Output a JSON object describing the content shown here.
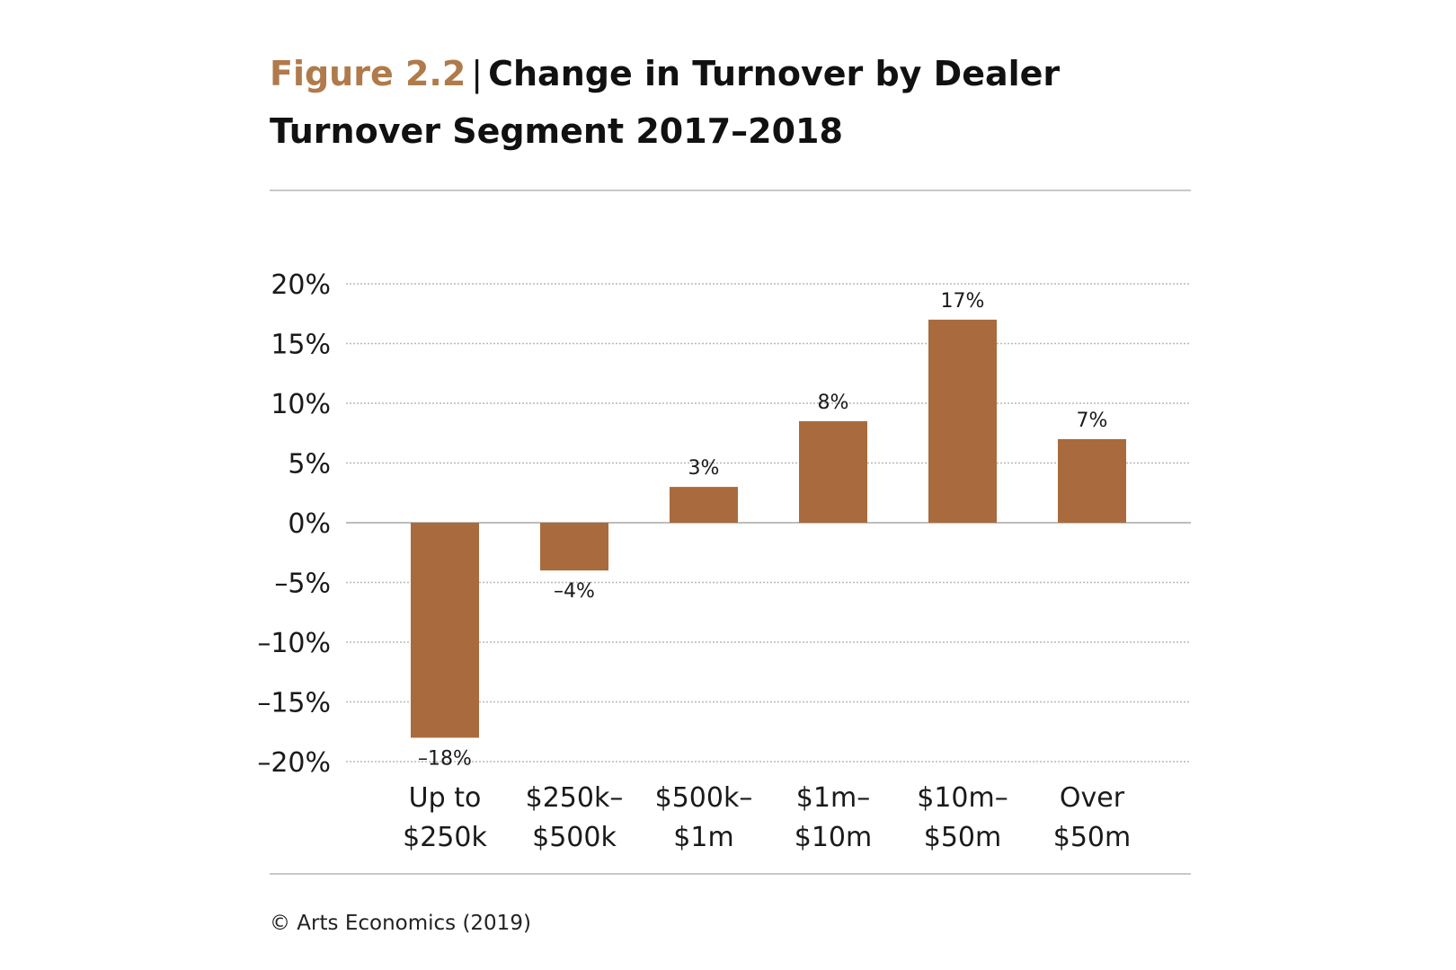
{
  "figure": {
    "label": "Figure 2.2",
    "title": "Change in Turnover by Dealer Turnover Segment 2017–2018"
  },
  "source": "© Arts Economics (2019)",
  "colors": {
    "bar": "#a96b3d",
    "figure_label": "#b07a4b",
    "gridline": "#b8b8b8",
    "rule": "#c8c8c8"
  },
  "chart_data": {
    "type": "bar",
    "title": "Change in Turnover by Dealer Turnover Segment 2017–2018",
    "xlabel": "",
    "ylabel": "",
    "categories": [
      [
        "Up to",
        "$250k"
      ],
      [
        "$250k–",
        "$500k"
      ],
      [
        "$500k–",
        "$1m"
      ],
      [
        "$1m–",
        "$10m"
      ],
      [
        "$10m–",
        "$50m"
      ],
      [
        "Over",
        "$50m"
      ]
    ],
    "values": [
      -18,
      -4,
      3,
      8.5,
      17,
      7
    ],
    "data_labels": [
      "–18%",
      "–4%",
      "3%",
      "8%",
      "17%",
      "7%"
    ],
    "ylim": [
      -20,
      20
    ],
    "yticks": [
      20,
      15,
      10,
      5,
      0,
      -5,
      -10,
      -15,
      -20
    ],
    "ytick_labels": [
      "20%",
      "15%",
      "10%",
      "5%",
      "0%",
      "–5%",
      "–10%",
      "–15%",
      "–20%"
    ],
    "grid": true,
    "legend": "none"
  }
}
